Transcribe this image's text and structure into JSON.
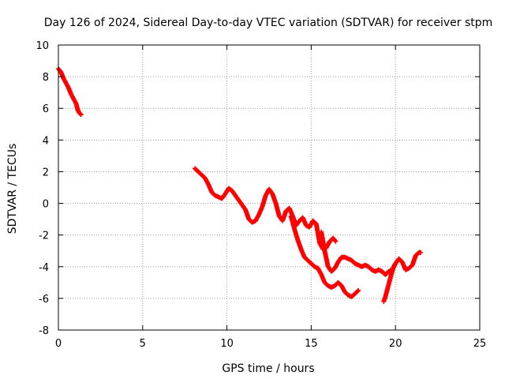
{
  "chart_data": {
    "type": "scatter",
    "title": "Day 126 of 2024, Sidereal Day-to-day VTEC variation (SDTVAR) for receiver stpm",
    "xlabel": "GPS time / hours",
    "ylabel": "SDTVAR / TECUs",
    "xlim": [
      0,
      25
    ],
    "ylim": [
      -8,
      10
    ],
    "xticks": [
      0,
      5,
      10,
      15,
      20,
      25
    ],
    "yticks": [
      -8,
      -6,
      -4,
      -2,
      0,
      2,
      4,
      6,
      8,
      10
    ],
    "grid": true,
    "marker": "+",
    "series": [
      {
        "name": "stpm",
        "color": "#ff0000",
        "segments": [
          [
            [
              0.0,
              8.5
            ],
            [
              0.15,
              8.3
            ],
            [
              0.3,
              7.9
            ],
            [
              0.45,
              7.6
            ],
            [
              0.6,
              7.3
            ],
            [
              0.75,
              6.9
            ],
            [
              0.9,
              6.6
            ],
            [
              1.05,
              6.3
            ],
            [
              1.15,
              5.9
            ],
            [
              1.25,
              5.7
            ],
            [
              1.35,
              5.6
            ]
          ],
          [
            [
              8.1,
              2.2
            ],
            [
              8.3,
              2.0
            ],
            [
              8.5,
              1.8
            ],
            [
              8.7,
              1.6
            ],
            [
              8.9,
              1.2
            ],
            [
              9.1,
              0.7
            ],
            [
              9.3,
              0.5
            ],
            [
              9.5,
              0.4
            ],
            [
              9.7,
              0.3
            ],
            [
              9.9,
              0.6
            ],
            [
              10.1,
              0.95
            ],
            [
              10.3,
              0.8
            ],
            [
              10.5,
              0.5
            ],
            [
              10.7,
              0.2
            ],
            [
              10.9,
              -0.1
            ],
            [
              11.1,
              -0.4
            ],
            [
              11.3,
              -1.0
            ],
            [
              11.5,
              -1.2
            ],
            [
              11.7,
              -1.1
            ],
            [
              11.9,
              -0.7
            ],
            [
              12.1,
              -0.2
            ],
            [
              12.3,
              0.5
            ],
            [
              12.5,
              0.9
            ],
            [
              12.7,
              0.6
            ],
            [
              12.9,
              0.0
            ],
            [
              13.1,
              -0.8
            ],
            [
              13.3,
              -1.1
            ],
            [
              13.5,
              -0.5
            ],
            [
              13.7,
              -0.3
            ],
            [
              13.9,
              -0.8
            ],
            [
              14.1,
              -1.4
            ],
            [
              14.3,
              -1.1
            ],
            [
              14.5,
              -0.9
            ],
            [
              14.7,
              -1.4
            ],
            [
              14.9,
              -1.5
            ],
            [
              15.1,
              -1.1
            ],
            [
              15.3,
              -1.3
            ],
            [
              15.5,
              -2.5
            ],
            [
              15.7,
              -2.9
            ],
            [
              15.9,
              -2.8
            ],
            [
              16.1,
              -2.4
            ],
            [
              16.3,
              -2.2
            ],
            [
              16.45,
              -2.4
            ]
          ],
          [
            [
              13.8,
              -0.8
            ],
            [
              14.0,
              -1.6
            ],
            [
              14.2,
              -2.3
            ],
            [
              14.4,
              -2.9
            ],
            [
              14.6,
              -3.4
            ],
            [
              14.8,
              -3.6
            ],
            [
              15.0,
              -3.8
            ],
            [
              15.2,
              -4.0
            ],
            [
              15.4,
              -4.1
            ],
            [
              15.6,
              -4.5
            ],
            [
              15.8,
              -5.0
            ],
            [
              16.0,
              -5.2
            ],
            [
              16.2,
              -5.3
            ],
            [
              16.4,
              -5.2
            ],
            [
              16.6,
              -5.0
            ],
            [
              16.8,
              -5.2
            ],
            [
              17.0,
              -5.6
            ],
            [
              17.2,
              -5.8
            ],
            [
              17.4,
              -5.9
            ],
            [
              17.6,
              -5.7
            ],
            [
              17.8,
              -5.5
            ]
          ],
          [
            [
              15.6,
              -1.8
            ],
            [
              15.7,
              -2.4
            ],
            [
              15.8,
              -3.0
            ],
            [
              15.9,
              -3.5
            ],
            [
              16.0,
              -4.0
            ],
            [
              16.2,
              -4.3
            ],
            [
              16.4,
              -4.1
            ],
            [
              16.6,
              -3.7
            ],
            [
              16.8,
              -3.4
            ],
            [
              17.0,
              -3.4
            ],
            [
              17.2,
              -3.5
            ],
            [
              17.4,
              -3.6
            ],
            [
              17.6,
              -3.8
            ],
            [
              17.8,
              -3.9
            ],
            [
              18.0,
              -4.0
            ],
            [
              18.2,
              -3.9
            ],
            [
              18.4,
              -4.0
            ],
            [
              18.6,
              -4.2
            ],
            [
              18.8,
              -4.3
            ],
            [
              19.0,
              -4.2
            ],
            [
              19.2,
              -4.3
            ],
            [
              19.4,
              -4.5
            ],
            [
              19.6,
              -4.3
            ],
            [
              19.8,
              -4.2
            ],
            [
              20.0,
              -3.8
            ],
            [
              20.2,
              -3.5
            ],
            [
              20.4,
              -3.7
            ],
            [
              20.6,
              -4.2
            ],
            [
              20.8,
              -4.1
            ],
            [
              21.0,
              -3.9
            ],
            [
              21.2,
              -3.3
            ],
            [
              21.4,
              -3.1
            ],
            [
              21.5,
              -3.1
            ]
          ],
          [
            [
              19.3,
              -6.2
            ],
            [
              19.4,
              -5.9
            ],
            [
              19.5,
              -5.5
            ],
            [
              19.6,
              -5.1
            ],
            [
              19.7,
              -4.7
            ],
            [
              19.8,
              -4.3
            ],
            [
              19.9,
              -4.0
            ],
            [
              20.0,
              -3.8
            ]
          ]
        ]
      }
    ]
  }
}
